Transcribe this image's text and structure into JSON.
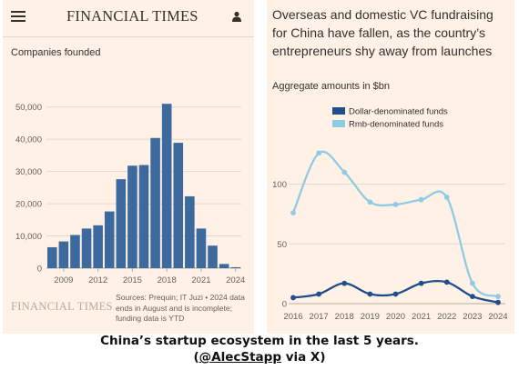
{
  "left": {
    "logo": "FINANCIAL TIMES",
    "subtitle": "Companies founded",
    "watermark": "FINANCIAL TIMES",
    "source": "Sources: Prequin; IT Juzi • 2024 data ends in August and is incomplete; funding data is YTD"
  },
  "right": {
    "title": "Overseas and domestic VC fundraising for China have fallen, as the country’s entrepreneurs shy away from launches",
    "subtitle": "Aggregate amounts in $bn"
  },
  "caption": {
    "line1": "China’s startup ecosystem in the last 5 years.",
    "open": "(",
    "handle": "@AlecStapp",
    "rest": " via X)"
  },
  "chart_data": [
    {
      "type": "bar",
      "title": "Companies founded",
      "x": [
        2008,
        2009,
        2010,
        2011,
        2012,
        2013,
        2014,
        2015,
        2016,
        2017,
        2018,
        2019,
        2020,
        2021,
        2022,
        2023,
        2024
      ],
      "values": [
        6500,
        8300,
        10300,
        12300,
        13300,
        17600,
        27600,
        31800,
        32000,
        40400,
        51000,
        38900,
        22300,
        12300,
        7000,
        1300,
        300
      ],
      "ylim": [
        0,
        55000
      ],
      "yticks": [
        "0",
        "10,000",
        "20,000",
        "30,000",
        "40,000",
        "50,000"
      ],
      "ytick_values": [
        0,
        10000,
        20000,
        30000,
        40000,
        50000
      ],
      "xticks": [
        "2009",
        "2012",
        "2015",
        "2018",
        "2021",
        "2024"
      ],
      "xtick_values": [
        2009,
        2012,
        2015,
        2018,
        2021,
        2024
      ],
      "grid": true,
      "color": "#3d6a9e"
    },
    {
      "type": "line",
      "title": "Aggregate amounts in $bn",
      "x": [
        2016,
        2017,
        2018,
        2019,
        2020,
        2021,
        2022,
        2023,
        2024
      ],
      "series": [
        {
          "name": "Dollar-denominated funds",
          "color": "#1f4e8c",
          "values": [
            5,
            8,
            17,
            8,
            8,
            17,
            18,
            6,
            1
          ]
        },
        {
          "name": "Rmb-denominated funds",
          "color": "#8fcbe3",
          "values": [
            76,
            126,
            110,
            85,
            83,
            87,
            89,
            17,
            6
          ]
        }
      ],
      "ylim": [
        0,
        140
      ],
      "yticks": [
        "0",
        "50",
        "100"
      ],
      "ytick_values": [
        0,
        50,
        100
      ],
      "xticks": [
        "2016",
        "2017",
        "2018",
        "2019",
        "2020",
        "2021",
        "2022",
        "2023",
        "2024"
      ],
      "legend": "top-left",
      "grid": true
    }
  ]
}
